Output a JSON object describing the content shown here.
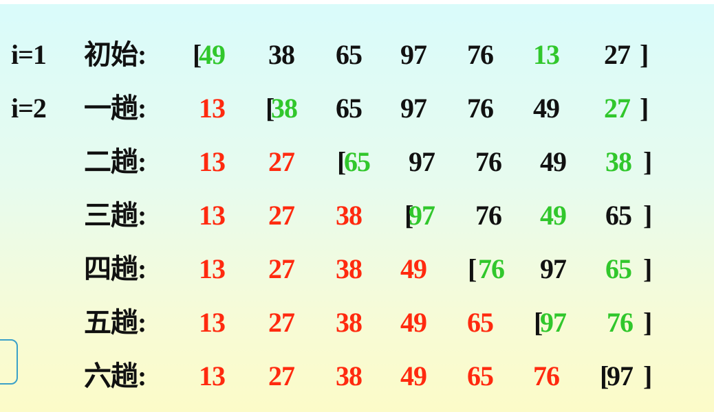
{
  "rows": [
    {
      "i_label": "i=1",
      "label": "初始:",
      "cells": [
        {
          "t": "[",
          "c": "bracket"
        },
        {
          "t": "49",
          "c": "green"
        },
        {
          "t": "38",
          "c": "black"
        },
        {
          "t": "65",
          "c": "black"
        },
        {
          "t": "97",
          "c": "black"
        },
        {
          "t": "76",
          "c": "black"
        },
        {
          "t": "13",
          "c": "green"
        },
        {
          "t": "27",
          "c": "black"
        },
        {
          "t": "]",
          "c": "bracket"
        }
      ]
    },
    {
      "i_label": "i=2",
      "label": "一趟:",
      "cells": [
        {
          "t": "13",
          "c": "red"
        },
        {
          "t": "[",
          "c": "bracket"
        },
        {
          "t": "38",
          "c": "green"
        },
        {
          "t": "65",
          "c": "black"
        },
        {
          "t": "97",
          "c": "black"
        },
        {
          "t": "76",
          "c": "black"
        },
        {
          "t": "49",
          "c": "black"
        },
        {
          "t": "27",
          "c": "green"
        },
        {
          "t": "]",
          "c": "bracket"
        }
      ]
    },
    {
      "i_label": "",
      "label": "二趟:",
      "cells": [
        {
          "t": "13",
          "c": "red"
        },
        {
          "t": "27",
          "c": "red"
        },
        {
          "t": "[",
          "c": "bracket"
        },
        {
          "t": "65",
          "c": "green"
        },
        {
          "t": "97",
          "c": "black"
        },
        {
          "t": "76",
          "c": "black"
        },
        {
          "t": "49",
          "c": "black"
        },
        {
          "t": "38",
          "c": "green"
        },
        {
          "t": "]",
          "c": "bracket"
        }
      ]
    },
    {
      "i_label": "",
      "label": "三趟:",
      "cells": [
        {
          "t": "13",
          "c": "red"
        },
        {
          "t": "27",
          "c": "red"
        },
        {
          "t": "38",
          "c": "red"
        },
        {
          "t": "[",
          "c": "bracket"
        },
        {
          "t": "97",
          "c": "green"
        },
        {
          "t": "76",
          "c": "black"
        },
        {
          "t": "49",
          "c": "green"
        },
        {
          "t": "65",
          "c": "black"
        },
        {
          "t": "]",
          "c": "bracket"
        }
      ]
    },
    {
      "i_label": "",
      "label": "四趟:",
      "cells": [
        {
          "t": "13",
          "c": "red"
        },
        {
          "t": "27",
          "c": "red"
        },
        {
          "t": "38",
          "c": "red"
        },
        {
          "t": "49",
          "c": "red"
        },
        {
          "t": "[",
          "c": "bracket"
        },
        {
          "t": "76",
          "c": "green"
        },
        {
          "t": "97",
          "c": "black"
        },
        {
          "t": "65",
          "c": "green"
        },
        {
          "t": "]",
          "c": "bracket"
        }
      ]
    },
    {
      "i_label": "",
      "label": "五趟:",
      "cells": [
        {
          "t": "13",
          "c": "red"
        },
        {
          "t": "27",
          "c": "red"
        },
        {
          "t": "38",
          "c": "red"
        },
        {
          "t": "49",
          "c": "red"
        },
        {
          "t": "65",
          "c": "red"
        },
        {
          "t": "[",
          "c": "bracket"
        },
        {
          "t": "97",
          "c": "green"
        },
        {
          "t": "76",
          "c": "green"
        },
        {
          "t": "]",
          "c": "bracket"
        }
      ]
    },
    {
      "i_label": "",
      "label": "六趟:",
      "cells": [
        {
          "t": "13",
          "c": "red"
        },
        {
          "t": "27",
          "c": "red"
        },
        {
          "t": "38",
          "c": "red"
        },
        {
          "t": "49",
          "c": "red"
        },
        {
          "t": "65",
          "c": "red"
        },
        {
          "t": "76",
          "c": "red"
        },
        {
          "t": "[",
          "c": "bracket"
        },
        {
          "t": "97",
          "c": "black"
        },
        {
          "t": "]",
          "c": "bracket"
        }
      ]
    }
  ],
  "colors": {
    "red": "#ff2a0f",
    "green": "#31c72c",
    "black": "#111111"
  }
}
